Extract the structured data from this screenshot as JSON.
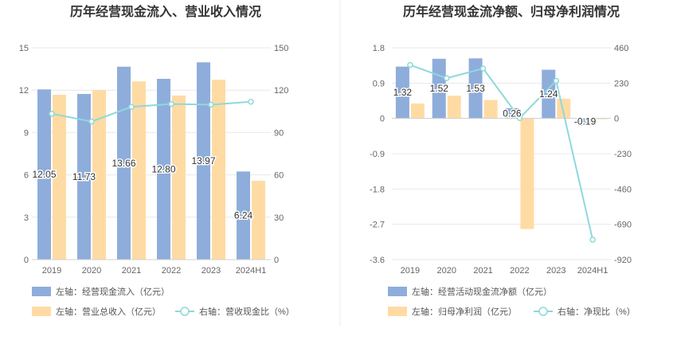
{
  "chart_data": [
    {
      "type": "bar",
      "title": "历年经营现金流入、营业收入情况",
      "categories": [
        "2019",
        "2020",
        "2021",
        "2022",
        "2023",
        "2024H1"
      ],
      "left_axis": {
        "ylim": [
          0,
          15
        ],
        "ticks": [
          "0",
          "3",
          "6",
          "9",
          "12",
          "15"
        ]
      },
      "right_axis": {
        "ylim": [
          0,
          150
        ],
        "ticks": [
          "0",
          "30",
          "60",
          "90",
          "120",
          "150"
        ]
      },
      "series": [
        {
          "name": "左轴：经营现金流入（亿元）",
          "kind": "bar",
          "axis": "left",
          "color": "#8EADDB",
          "values": [
            12.05,
            11.73,
            13.66,
            12.8,
            13.97,
            6.24
          ],
          "labels": [
            "12.05",
            "11.73",
            "13.66",
            "12.80",
            "13.97",
            "6.24"
          ]
        },
        {
          "name": "左轴：营业总收入（亿元）",
          "kind": "bar",
          "axis": "left",
          "color": "#FFDBA4",
          "values": [
            11.67,
            12.0,
            12.62,
            11.62,
            12.74,
            5.58
          ]
        },
        {
          "name": "右轴：营收现金比（%）",
          "kind": "line",
          "axis": "right",
          "color": "#8FD8DB",
          "values": [
            103.3,
            97.8,
            108.2,
            110.2,
            109.7,
            111.8
          ]
        }
      ]
    },
    {
      "type": "bar",
      "title": "历年经营现金流净额、归母净利润情况",
      "categories": [
        "2019",
        "2020",
        "2021",
        "2022",
        "2023",
        "2024H1"
      ],
      "left_axis": {
        "ylim": [
          -3.6,
          1.8
        ],
        "ticks": [
          "-3.6",
          "-2.7",
          "-1.8",
          "-0.9",
          "0",
          "0.9",
          "1.8"
        ]
      },
      "right_axis": {
        "ylim": [
          -920,
          460
        ],
        "ticks": [
          "-920",
          "-690",
          "-460",
          "-230",
          "0",
          "230",
          "460"
        ]
      },
      "series": [
        {
          "name": "左轴：经营活动现金流净额（亿元）",
          "kind": "bar",
          "axis": "left",
          "color": "#8EADDB",
          "values": [
            1.32,
            1.52,
            1.53,
            0.26,
            1.24,
            -0.19
          ],
          "labels": [
            "1.32",
            "1.52",
            "1.53",
            "0.26",
            "1.24",
            "-0.19"
          ]
        },
        {
          "name": "左轴：归母净利润（亿元）",
          "kind": "bar",
          "axis": "left",
          "color": "#FFDBA4",
          "values": [
            0.38,
            0.58,
            0.47,
            -2.82,
            0.5,
            -0.01
          ]
        },
        {
          "name": "右轴：净现比（%）",
          "kind": "line",
          "axis": "right",
          "color": "#8FD8DB",
          "values": [
            348,
            262,
            325,
            2,
            245,
            -790
          ]
        }
      ]
    }
  ]
}
